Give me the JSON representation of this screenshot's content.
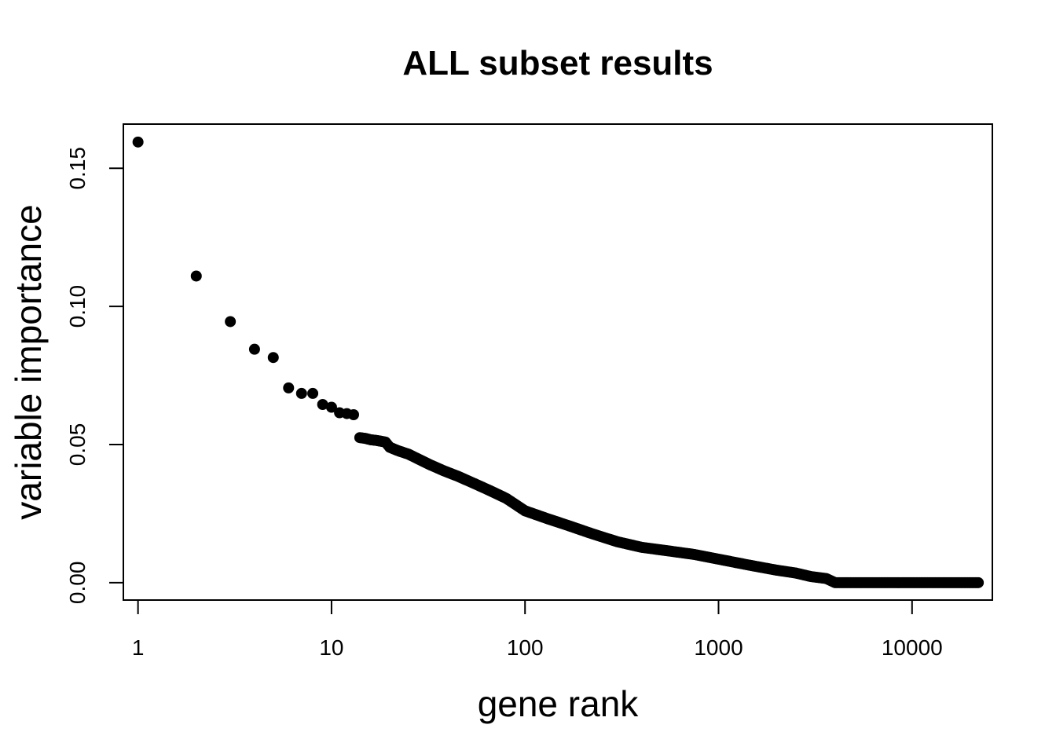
{
  "chart_data": {
    "type": "scatter",
    "title": "ALL subset results",
    "xlabel": "gene rank",
    "ylabel": "variable importance",
    "x_scale": "log",
    "xlim": [
      0.84,
      26000
    ],
    "ylim": [
      -0.0063,
      0.166
    ],
    "x_ticks": [
      {
        "value": 1,
        "label": "1"
      },
      {
        "value": 10,
        "label": "10"
      },
      {
        "value": 100,
        "label": "100"
      },
      {
        "value": 1000,
        "label": "1000"
      },
      {
        "value": 10000,
        "label": "10000"
      }
    ],
    "y_ticks": [
      {
        "value": 0.0,
        "label": "0.00"
      },
      {
        "value": 0.05,
        "label": "0.05"
      },
      {
        "value": 0.1,
        "label": "0.10"
      },
      {
        "value": 0.15,
        "label": "0.15"
      }
    ],
    "points": [
      [
        1,
        0.1595
      ],
      [
        2,
        0.111
      ],
      [
        3,
        0.0945
      ],
      [
        4,
        0.0845
      ],
      [
        5,
        0.0815
      ],
      [
        6,
        0.0705
      ],
      [
        7,
        0.0685
      ],
      [
        8,
        0.0685
      ],
      [
        9,
        0.0645
      ],
      [
        10,
        0.0635
      ],
      [
        11,
        0.0615
      ],
      [
        12,
        0.0612
      ],
      [
        13,
        0.0608
      ]
    ],
    "curve": [
      [
        14,
        0.0525
      ],
      [
        15,
        0.0522
      ],
      [
        16,
        0.0517
      ],
      [
        17,
        0.0515
      ],
      [
        18,
        0.0512
      ],
      [
        19,
        0.0509
      ],
      [
        20,
        0.049
      ],
      [
        22,
        0.0478
      ],
      [
        25,
        0.0465
      ],
      [
        28,
        0.0448
      ],
      [
        32,
        0.0428
      ],
      [
        38,
        0.0405
      ],
      [
        45,
        0.0385
      ],
      [
        55,
        0.0358
      ],
      [
        65,
        0.0335
      ],
      [
        80,
        0.0305
      ],
      [
        100,
        0.026
      ],
      [
        130,
        0.0232
      ],
      [
        170,
        0.0205
      ],
      [
        220,
        0.0178
      ],
      [
        300,
        0.0148
      ],
      [
        400,
        0.0128
      ],
      [
        550,
        0.0115
      ],
      [
        750,
        0.0102
      ],
      [
        1000,
        0.0085
      ],
      [
        1400,
        0.0065
      ],
      [
        2000,
        0.0045
      ],
      [
        2500,
        0.0035
      ],
      [
        3000,
        0.0022
      ],
      [
        3600,
        0.0015
      ],
      [
        4000,
        0.0
      ],
      [
        6000,
        0.0
      ],
      [
        10000,
        0.0
      ],
      [
        15000,
        0.0
      ],
      [
        22000,
        0.0
      ]
    ]
  }
}
